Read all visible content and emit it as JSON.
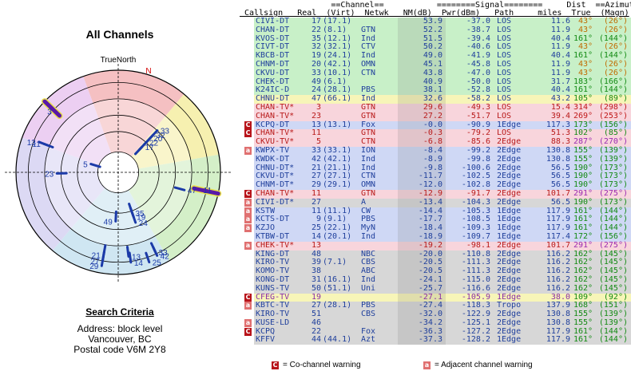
{
  "title": "All Channels",
  "polar": {
    "north_label": "TrueNorth",
    "north_marker": "N",
    "ring_colors": [
      "#f6c6c6",
      "#f7f2b6",
      "#cdeec9",
      "#d9e4f6",
      "#e6cdef"
    ]
  },
  "criteria": {
    "title": "Search Criteria",
    "address": "Address: block level",
    "city": "Vancouver, BC",
    "postal": "Postal code V6M 2Y8"
  },
  "header": {
    "line1": "                   ==Channel==           ========Signal========     Dist  ==Azimuth==",
    "line2": " Callsign   Real  (Virt)  Netwk   NM(dB)  Pwr(dBm)   Path     miles  True  (Magn)"
  },
  "legend": {
    "co_text": "= Co-channel warning",
    "adj_text": "= Adjacent channel warning",
    "co_icon": "C",
    "adj_icon": "a"
  },
  "colors": {
    "green": "#c8f0c8",
    "yellow": "#f7f5b8",
    "pink": "#f8d5dc",
    "blue": "#cfd8f5",
    "grey": "#d7d7d7",
    "text_blue": "#1f3f9c",
    "text_red": "#b81a1a",
    "text_purple": "#8a2da8",
    "az_orange": "#c06a00",
    "az_green": "#138a13",
    "az_red": "#c01818",
    "az_purple": "#9a2ab0"
  },
  "chart_data": {
    "type": "table",
    "columns": [
      "Callsign",
      "Real",
      "Virt",
      "Netwk",
      "NM(dB)",
      "Pwr(dBm)",
      "Path",
      "Dist miles",
      "True",
      "Magn"
    ],
    "rows": [
      {
        "callsign": "CIVI-DT",
        "real": "17",
        "virt": "(17.1)",
        "net": "",
        "nm": "53.9",
        "pwr": "-37.0",
        "path": "LOS",
        "dist": "11.6",
        "true_az": "43°",
        "magn": "(26°)",
        "band": "green",
        "az": "orange",
        "warn": ""
      },
      {
        "callsign": "CHAN-DT",
        "real": "22",
        "virt": "(8.1)",
        "net": "GTN",
        "nm": "52.2",
        "pwr": "-38.7",
        "path": "LOS",
        "dist": "11.9",
        "true_az": "43°",
        "magn": "(26°)",
        "band": "green",
        "az": "orange",
        "warn": ""
      },
      {
        "callsign": "KVOS-DT",
        "real": "35",
        "virt": "(12.1)",
        "net": "Ind",
        "nm": "51.5",
        "pwr": "-39.4",
        "path": "LOS",
        "dist": "40.4",
        "true_az": "161°",
        "magn": "(144°)",
        "band": "green",
        "az": "green",
        "warn": ""
      },
      {
        "callsign": "CIVT-DT",
        "real": "32",
        "virt": "(32.1)",
        "net": "CTV",
        "nm": "50.2",
        "pwr": "-40.6",
        "path": "LOS",
        "dist": "11.9",
        "true_az": "43°",
        "magn": "(26°)",
        "band": "green",
        "az": "orange",
        "warn": ""
      },
      {
        "callsign": "KBCB-DT",
        "real": "19",
        "virt": "(24.1)",
        "net": "Ind",
        "nm": "49.0",
        "pwr": "-41.9",
        "path": "LOS",
        "dist": "40.4",
        "true_az": "161°",
        "magn": "(144°)",
        "band": "green",
        "az": "green",
        "warn": ""
      },
      {
        "callsign": "CHNM-DT",
        "real": "20",
        "virt": "(42.1)",
        "net": "OMN",
        "nm": "45.1",
        "pwr": "-45.8",
        "path": "LOS",
        "dist": "11.9",
        "true_az": "43°",
        "magn": "(26°)",
        "band": "green",
        "az": "orange",
        "warn": ""
      },
      {
        "callsign": "CKVU-DT",
        "real": "33",
        "virt": "(10.1)",
        "net": "CTN",
        "nm": "43.8",
        "pwr": "-47.0",
        "path": "LOS",
        "dist": "11.9",
        "true_az": "43°",
        "magn": "(26°)",
        "band": "green",
        "az": "orange",
        "warn": ""
      },
      {
        "callsign": "CHEK-DT",
        "real": "49",
        "virt": "(6.1)",
        "net": "",
        "nm": "40.9",
        "pwr": "-50.0",
        "path": "LOS",
        "dist": "31.7",
        "true_az": "183°",
        "magn": "(166°)",
        "band": "green",
        "az": "green",
        "warn": ""
      },
      {
        "callsign": "K24IC-D",
        "real": "24",
        "virt": "(28.1)",
        "net": "PBS",
        "nm": "38.1",
        "pwr": "-52.8",
        "path": "LOS",
        "dist": "40.4",
        "true_az": "161°",
        "magn": "(144°)",
        "band": "green",
        "az": "green",
        "warn": ""
      },
      {
        "callsign": "CHNU-DT",
        "real": "47",
        "virt": "(66.1)",
        "net": "Ind",
        "nm": "32.6",
        "pwr": "-58.2",
        "path": "LOS",
        "dist": "43.2",
        "true_az": "105°",
        "magn": "(89°)",
        "band": "yellow",
        "az": "green",
        "warn": ""
      },
      {
        "callsign": "CHAN-TV*",
        "real": "3",
        "virt": "",
        "net": "GTN",
        "nm": "29.6",
        "pwr": "-49.3",
        "path": "LOS",
        "dist": "15.4",
        "true_az": "314°",
        "magn": "(298°)",
        "band": "pink",
        "az": "red",
        "warn": ""
      },
      {
        "callsign": "CHAN-TV*",
        "real": "23",
        "virt": "",
        "net": "GTN",
        "nm": "27.2",
        "pwr": "-51.7",
        "path": "LOS",
        "dist": "39.4",
        "true_az": "269°",
        "magn": "(253°)",
        "band": "pink",
        "az": "red",
        "warn": ""
      },
      {
        "callsign": "KCPQ-DT",
        "real": "13",
        "virt": "(13.1)",
        "net": "Fox",
        "nm": "-0.0",
        "pwr": "-90.9",
        "path": "1Edge",
        "dist": "117.3",
        "true_az": "173°",
        "magn": "(156°)",
        "band": "blue",
        "az": "green",
        "warn": "co"
      },
      {
        "callsign": "CHAN-TV*",
        "real": "11",
        "virt": "",
        "net": "GTN",
        "nm": "-0.3",
        "pwr": "-79.2",
        "path": "LOS",
        "dist": "51.3",
        "true_az": "102°",
        "magn": "(85°)",
        "band": "pink",
        "az": "green",
        "warn": "co"
      },
      {
        "callsign": "CKVU-TV*",
        "real": "5",
        "virt": "",
        "net": "CTN",
        "nm": "-6.8",
        "pwr": "-85.6",
        "path": "2Edge",
        "dist": "88.3",
        "true_az": "287°",
        "magn": "(270°)",
        "band": "pink",
        "az": "purple",
        "warn": ""
      },
      {
        "callsign": "KWPX-TV",
        "real": "33",
        "virt": "(33.1)",
        "net": "ION",
        "nm": "-8.4",
        "pwr": "-99.2",
        "path": "2Edge",
        "dist": "130.8",
        "true_az": "155°",
        "magn": "(139°)",
        "band": "blue",
        "az": "green",
        "warn": "adj"
      },
      {
        "callsign": "KWDK-DT",
        "real": "42",
        "virt": "(42.1)",
        "net": "Ind",
        "nm": "-8.9",
        "pwr": "-99.8",
        "path": "2Edge",
        "dist": "130.8",
        "true_az": "155°",
        "magn": "(139°)",
        "band": "blue",
        "az": "green",
        "warn": ""
      },
      {
        "callsign": "CHNU-DT*",
        "real": "21",
        "virt": "(21.1)",
        "net": "Ind",
        "nm": "-9.8",
        "pwr": "-100.6",
        "path": "2Edge",
        "dist": "56.5",
        "true_az": "190°",
        "magn": "(173°)",
        "band": "blue",
        "az": "green",
        "warn": ""
      },
      {
        "callsign": "CKVU-DT*",
        "real": "27",
        "virt": "(27.1)",
        "net": "CTN",
        "nm": "-11.7",
        "pwr": "-102.5",
        "path": "2Edge",
        "dist": "56.5",
        "true_az": "190°",
        "magn": "(173°)",
        "band": "blue",
        "az": "green",
        "warn": ""
      },
      {
        "callsign": "CHNM-DT*",
        "real": "29",
        "virt": "(29.1)",
        "net": "OMN",
        "nm": "-12.0",
        "pwr": "-102.8",
        "path": "2Edge",
        "dist": "56.5",
        "true_az": "190°",
        "magn": "(173°)",
        "band": "blue",
        "az": "green",
        "warn": ""
      },
      {
        "callsign": "CHAN-TV*",
        "real": "11",
        "virt": "",
        "net": "GTN",
        "nm": "-12.9",
        "pwr": "-91.7",
        "path": "2Edge",
        "dist": "101.7",
        "true_az": "291°",
        "magn": "(275°)",
        "band": "pink",
        "az": "purple",
        "warn": "co"
      },
      {
        "callsign": "CIVI-DT*",
        "real": "27",
        "virt": "",
        "net": "A",
        "nm": "-13.4",
        "pwr": "-104.3",
        "path": "2Edge",
        "dist": "56.5",
        "true_az": "190°",
        "magn": "(173°)",
        "band": "grey",
        "az": "green",
        "warn": "adj"
      },
      {
        "callsign": "KSTW",
        "real": "11",
        "virt": "(11.1)",
        "net": "CW",
        "nm": "-14.4",
        "pwr": "-105.3",
        "path": "1Edge",
        "dist": "117.9",
        "true_az": "161°",
        "magn": "(144°)",
        "band": "blue",
        "az": "green",
        "warn": "adj"
      },
      {
        "callsign": "KCTS-DT",
        "real": "9",
        "virt": "(9.1)",
        "net": "PBS",
        "nm": "-17.7",
        "pwr": "-108.5",
        "path": "1Edge",
        "dist": "117.9",
        "true_az": "161°",
        "magn": "(144°)",
        "band": "blue",
        "az": "green",
        "warn": "adj"
      },
      {
        "callsign": "KZJO",
        "real": "25",
        "virt": "(22.1)",
        "net": "MyN",
        "nm": "-18.4",
        "pwr": "-109.3",
        "path": "1Edge",
        "dist": "117.9",
        "true_az": "161°",
        "magn": "(144°)",
        "band": "blue",
        "az": "green",
        "warn": "adj"
      },
      {
        "callsign": "KTBW-DT",
        "real": "14",
        "virt": "(20.1)",
        "net": "Ind",
        "nm": "-18.9",
        "pwr": "-109.7",
        "path": "1Edge",
        "dist": "117.4",
        "true_az": "172°",
        "magn": "(156°)",
        "band": "blue",
        "az": "green",
        "warn": ""
      },
      {
        "callsign": "CHEK-TV*",
        "real": "13",
        "virt": "",
        "net": "",
        "nm": "-19.2",
        "pwr": "-98.1",
        "path": "2Edge",
        "dist": "101.7",
        "true_az": "291°",
        "magn": "(275°)",
        "band": "pink",
        "az": "purple",
        "warn": "adj"
      },
      {
        "callsign": "KING-DT",
        "real": "48",
        "virt": "",
        "net": "NBC",
        "nm": "-20.0",
        "pwr": "-110.8",
        "path": "2Edge",
        "dist": "116.2",
        "true_az": "162°",
        "magn": "(145°)",
        "band": "grey",
        "az": "green",
        "warn": ""
      },
      {
        "callsign": "KIRO-TV",
        "real": "39",
        "virt": "(7.1)",
        "net": "CBS",
        "nm": "-20.5",
        "pwr": "-111.3",
        "path": "2Edge",
        "dist": "116.2",
        "true_az": "162°",
        "magn": "(145°)",
        "band": "grey",
        "az": "green",
        "warn": ""
      },
      {
        "callsign": "KOMO-TV",
        "real": "38",
        "virt": "",
        "net": "ABC",
        "nm": "-20.5",
        "pwr": "-111.3",
        "path": "2Edge",
        "dist": "116.2",
        "true_az": "162°",
        "magn": "(145°)",
        "band": "grey",
        "az": "green",
        "warn": ""
      },
      {
        "callsign": "KONG-DT",
        "real": "31",
        "virt": "(16.1)",
        "net": "Ind",
        "nm": "-24.1",
        "pwr": "-115.0",
        "path": "2Edge",
        "dist": "116.2",
        "true_az": "162°",
        "magn": "(145°)",
        "band": "grey",
        "az": "green",
        "warn": ""
      },
      {
        "callsign": "KUNS-TV",
        "real": "50",
        "virt": "(51.1)",
        "net": "Uni",
        "nm": "-25.7",
        "pwr": "-116.6",
        "path": "2Edge",
        "dist": "116.2",
        "true_az": "162°",
        "magn": "(145°)",
        "band": "grey",
        "az": "green",
        "warn": ""
      },
      {
        "callsign": "CFEG-TV",
        "real": "19",
        "virt": "",
        "net": "",
        "nm": "-27.1",
        "pwr": "-105.9",
        "path": "1Edge",
        "dist": "38.0",
        "true_az": "109°",
        "magn": "(92°)",
        "band": "yellow",
        "az": "green",
        "warn": "co"
      },
      {
        "callsign": "KBTC-TV",
        "real": "27",
        "virt": "(28.1)",
        "net": "PBS",
        "nm": "-27.4",
        "pwr": "-118.3",
        "path": "Tropo",
        "dist": "137.9",
        "true_az": "168°",
        "magn": "(151°)",
        "band": "grey",
        "az": "green",
        "warn": "adj"
      },
      {
        "callsign": "KIRO-TV",
        "real": "51",
        "virt": "",
        "net": "CBS",
        "nm": "-32.0",
        "pwr": "-122.9",
        "path": "2Edge",
        "dist": "130.8",
        "true_az": "155°",
        "magn": "(139°)",
        "band": "grey",
        "az": "green",
        "warn": ""
      },
      {
        "callsign": "KUSE-LD",
        "real": "46",
        "virt": "",
        "net": "",
        "nm": "-34.2",
        "pwr": "-125.1",
        "path": "2Edge",
        "dist": "130.8",
        "true_az": "155°",
        "magn": "(139°)",
        "band": "grey",
        "az": "green",
        "warn": "adj"
      },
      {
        "callsign": "KCPQ",
        "real": "22",
        "virt": "",
        "net": "Fox",
        "nm": "-36.3",
        "pwr": "-127.2",
        "path": "2Edge",
        "dist": "117.9",
        "true_az": "161°",
        "magn": "(144°)",
        "band": "grey",
        "az": "green",
        "warn": "co"
      },
      {
        "callsign": "KFFV",
        "real": "44",
        "virt": "(44.1)",
        "net": "Azt",
        "nm": "-37.3",
        "pwr": "-128.2",
        "path": "1Edge",
        "dist": "117.9",
        "true_az": "161°",
        "magn": "(144°)",
        "band": "grey",
        "az": "green",
        "warn": ""
      }
    ],
    "polar_plot": {
      "type": "polar-scatter",
      "r_axis": "signal strength (center weak, edge strong)",
      "points": [
        {
          "label": "3",
          "az": 314,
          "strength": 0.86,
          "color": "blue"
        },
        {
          "label": "23",
          "az": 269,
          "strength": 0.6,
          "color": "blue"
        },
        {
          "label": "5",
          "az": 287,
          "strength": 0.28,
          "color": "blue"
        },
        {
          "label": "11",
          "az": 291,
          "strength": 0.78,
          "color": "blue"
        },
        {
          "label": "13",
          "az": 291,
          "strength": 0.83,
          "color": "blue"
        },
        {
          "label": "11",
          "az": 102,
          "strength": 0.82,
          "color": "blue"
        },
        {
          "label": "47",
          "az": 105,
          "strength": 0.67,
          "color": "blue"
        },
        {
          "label": "33",
          "az": 43,
          "strength": 0.56,
          "color": "blue"
        },
        {
          "label": "20",
          "az": 43,
          "strength": 0.46,
          "color": "blue"
        },
        {
          "label": "32",
          "az": 43,
          "strength": 0.5,
          "color": "blue"
        },
        {
          "label": "22",
          "az": 43,
          "strength": 0.4,
          "color": "blue"
        },
        {
          "label": "17",
          "az": 43,
          "strength": 0.34,
          "color": "blue"
        },
        {
          "label": "35",
          "az": 161,
          "strength": 0.42,
          "color": "blue"
        },
        {
          "label": "19",
          "az": 161,
          "strength": 0.46,
          "color": "blue"
        },
        {
          "label": "24",
          "az": 161,
          "strength": 0.52,
          "color": "blue"
        },
        {
          "label": "49",
          "az": 183,
          "strength": 0.48,
          "color": "blue"
        },
        {
          "label": "13",
          "az": 173,
          "strength": 0.83,
          "color": "blue"
        },
        {
          "label": "14",
          "az": 172,
          "strength": 0.89,
          "color": "blue"
        },
        {
          "label": "33",
          "az": 155,
          "strength": 0.86,
          "color": "blue"
        },
        {
          "label": "42",
          "az": 155,
          "strength": 0.9,
          "color": "blue"
        },
        {
          "label": "25",
          "az": 161,
          "strength": 0.93,
          "color": "blue"
        },
        {
          "label": "21",
          "az": 190,
          "strength": 0.82,
          "color": "blue"
        },
        {
          "label": "27",
          "az": 190,
          "strength": 0.88,
          "color": "blue"
        },
        {
          "label": "29",
          "az": 190,
          "strength": 0.93,
          "color": "blue"
        }
      ]
    }
  }
}
